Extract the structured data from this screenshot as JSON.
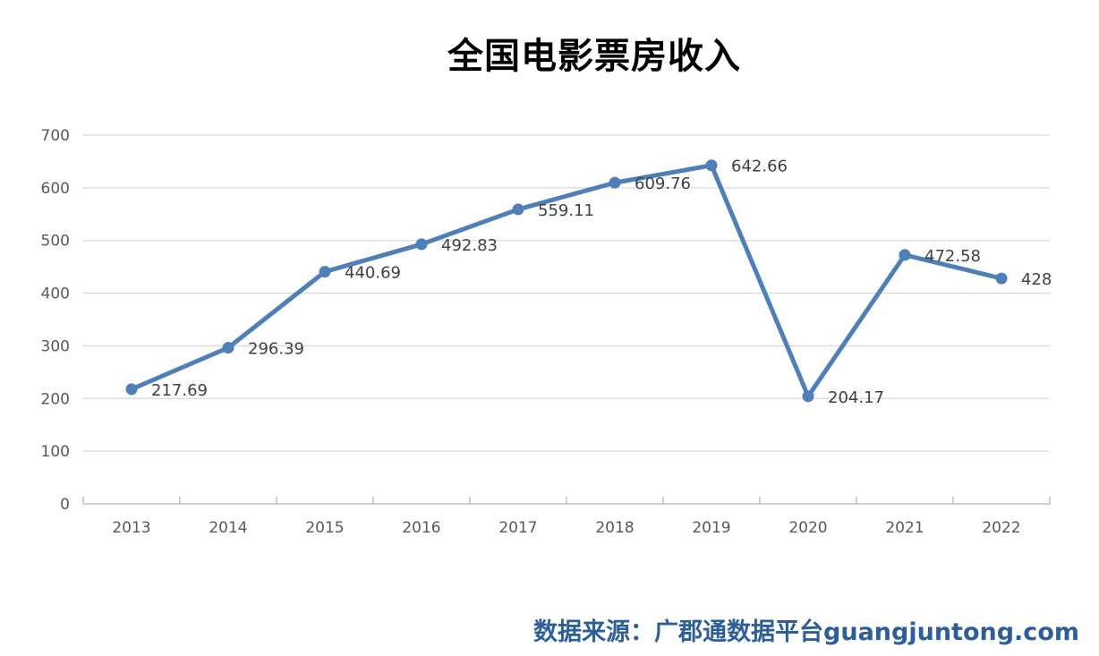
{
  "chart_data": {
    "type": "line",
    "title": "全国电影票房收入",
    "xlabel": "",
    "ylabel": "",
    "categories": [
      "2013",
      "2014",
      "2015",
      "2016",
      "2017",
      "2018",
      "2019",
      "2020",
      "2021",
      "2022"
    ],
    "series": [
      {
        "values": [
          217.69,
          296.39,
          440.69,
          492.83,
          559.11,
          609.76,
          642.66,
          204.17,
          472.58,
          428
        ],
        "data_labels": [
          "217.69",
          "296.39",
          "440.69",
          "492.83",
          "559.11",
          "609.76",
          "642.66",
          "204.17",
          "472.58",
          "428"
        ],
        "color": "#4f7fb8"
      }
    ],
    "ylim": [
      0,
      700
    ],
    "yticks": [
      "0",
      "100",
      "200",
      "300",
      "400",
      "500",
      "600",
      "700"
    ],
    "grid": true,
    "legend": "none"
  },
  "source_note": "数据来源：广郡通数据平台guangjuntong.com",
  "colors": {
    "line": "#4f7fb8",
    "grid": "#d9d9d9",
    "axis": "#bfbfbf",
    "tick_text": "#595959",
    "label_text": "#404040",
    "source_text": "#2e5e9a"
  }
}
